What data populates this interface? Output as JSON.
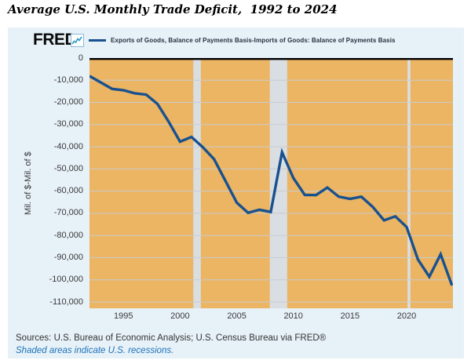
{
  "title": "Average U.S. Monthly Trade Deficit,  1992 to 2024",
  "logo": {
    "text": "FRED",
    "reg_mark": "®",
    "icon": "sparkline-icon"
  },
  "legend": {
    "label": "Exports of Goods, Balance of Payments Basis-Imports of Goods: Balance of Payments Basis",
    "swatch_color": "#19518f"
  },
  "footer": {
    "sources": "Sources: U.S. Bureau of Economic Analysis; U.S. Census Bureau via FRED®",
    "note": "Shaded areas indicate U.S. recessions."
  },
  "colors": {
    "panel_bg": "#e7f1f8",
    "title_text": "#000000",
    "tick_text": "#3a3a3a",
    "note_blue": "#1c72b8"
  },
  "chart_data": {
    "type": "line",
    "title": "Average U.S. Monthly Trade Deficit, 1992 to 2024",
    "xlabel": "",
    "ylabel": "Mil. of $-Mil. of $",
    "x": [
      1992,
      1993,
      1994,
      1995,
      1996,
      1997,
      1998,
      1999,
      2000,
      2001,
      2002,
      2003,
      2004,
      2005,
      2006,
      2007,
      2008,
      2009,
      2010,
      2011,
      2012,
      2013,
      2014,
      2015,
      2016,
      2017,
      2018,
      2019,
      2020,
      2021,
      2022,
      2023,
      2024
    ],
    "series": [
      {
        "name": "Exports of Goods, Balance of Payments Basis-Imports of Goods: Balance of Payments Basis",
        "values": [
          -8100,
          -11000,
          -13900,
          -14500,
          -15900,
          -16500,
          -20700,
          -28800,
          -37700,
          -35600,
          -40200,
          -45600,
          -55400,
          -65200,
          -69800,
          -68400,
          -69400,
          -42500,
          -54100,
          -61700,
          -61800,
          -58400,
          -62500,
          -63500,
          -62500,
          -67100,
          -73200,
          -71400,
          -76200,
          -90900,
          -98600,
          -88500,
          -102500
        ]
      }
    ],
    "x_ticks": [
      1995,
      2000,
      2005,
      2010,
      2015,
      2020
    ],
    "y_ticks": [
      "0",
      "-10,000",
      "-20,000",
      "-30,000",
      "-40,000",
      "-50,000",
      "-60,000",
      "-70,000",
      "-80,000",
      "-90,000",
      "-100,000",
      "-110,000"
    ],
    "xlim": [
      1992,
      2024.1
    ],
    "ylim": [
      -112800,
      0
    ],
    "grid": "horizontal",
    "legend_position": "top",
    "plot_bg": "#ebb563",
    "grid_color": "#c9cbce",
    "line_color": "#19518f",
    "zero_line_color": "#000000",
    "recession_color": "#d9dee3",
    "recessions": [
      [
        2001.17,
        2001.83
      ],
      [
        2007.92,
        2009.45
      ],
      [
        2020.08,
        2020.33
      ]
    ]
  }
}
